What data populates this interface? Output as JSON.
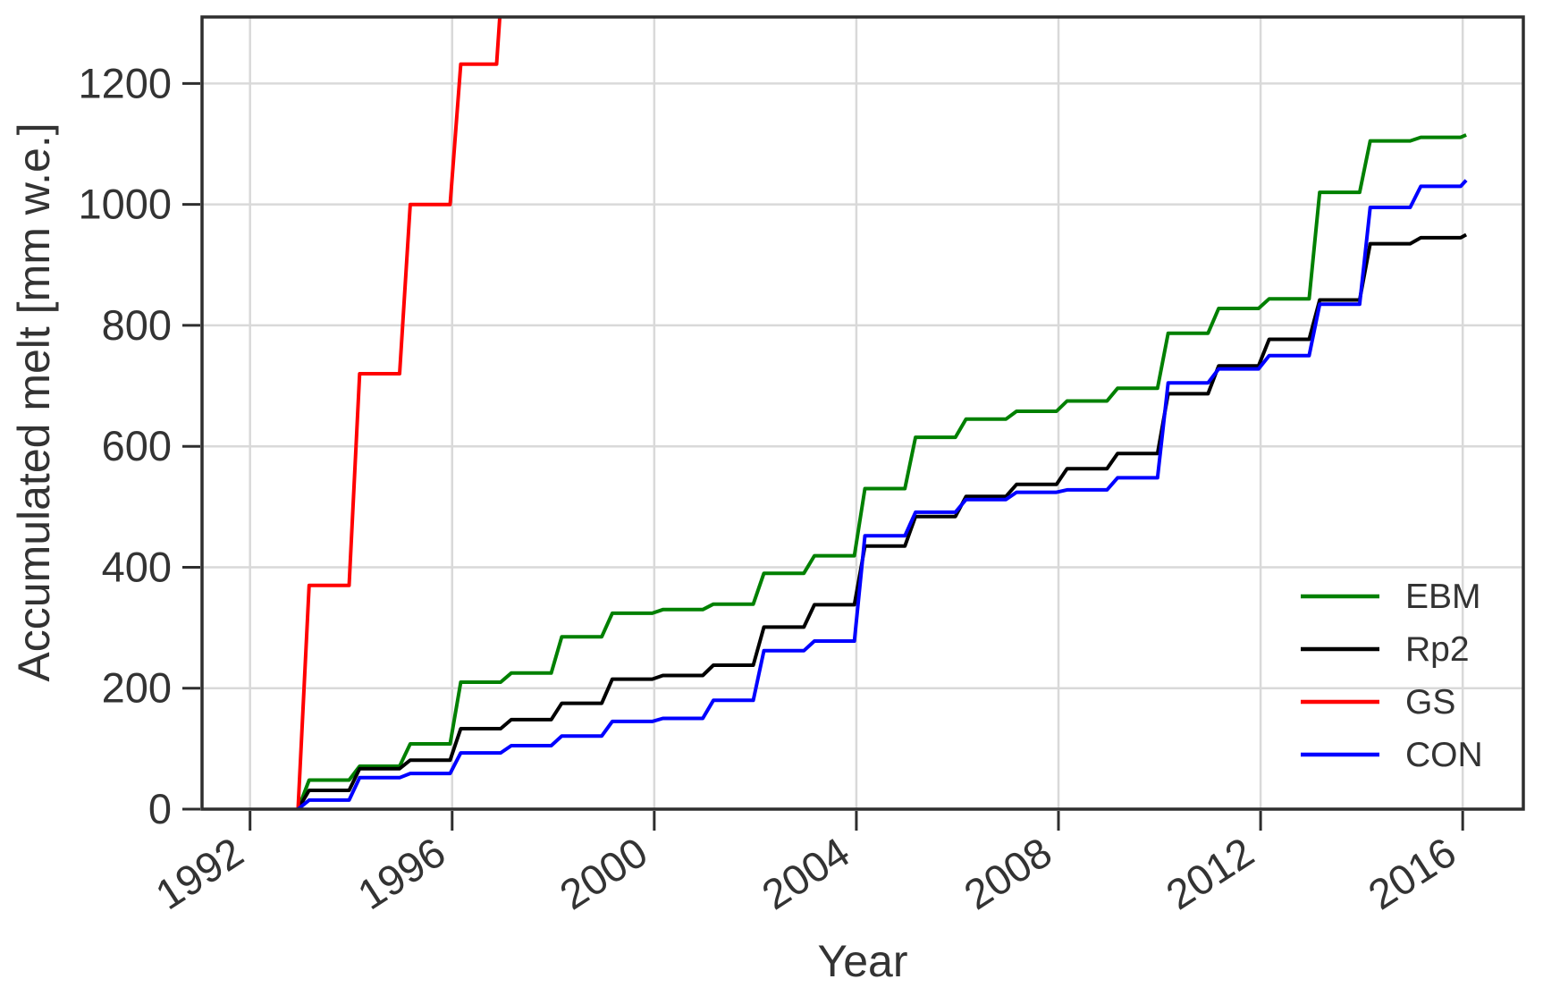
{
  "page": {
    "background": "#ffffff"
  },
  "chart_data": {
    "type": "line",
    "subtype": "cumulative-annual-step",
    "title": "",
    "xlabel": "Year",
    "ylabel": "Accumulated melt [mm w.e.]",
    "x_ticks": [
      1992,
      1996,
      2000,
      2004,
      2008,
      2012,
      2016
    ],
    "y_ticks": [
      0,
      200,
      400,
      600,
      800,
      1000,
      1200
    ],
    "xlim": [
      1991.05,
      2017.2
    ],
    "ylim": [
      0,
      1310
    ],
    "grid": true,
    "legend": {
      "location": "center-right",
      "entries": [
        "EBM",
        "Rp2",
        "GS",
        "CON"
      ]
    },
    "start_year": 1993,
    "end_year": 2016,
    "melt_onset_year": 1992.95,
    "series": [
      {
        "name": "EBM",
        "color": "#008000",
        "values": [
          48,
          71,
          108,
          210,
          225,
          285,
          324,
          330,
          339,
          390,
          419,
          530,
          615,
          645,
          658,
          675,
          696,
          787,
          828,
          844,
          1020,
          1105,
          1111,
          1115
        ]
      },
      {
        "name": "Rp2",
        "color": "#000000",
        "values": [
          31,
          67,
          81,
          133,
          148,
          175,
          215,
          221,
          238,
          301,
          338,
          435,
          484,
          517,
          537,
          563,
          588,
          687,
          733,
          777,
          842,
          935,
          945,
          950
        ]
      },
      {
        "name": "GS",
        "color": "#ff0000",
        "values": [
          370,
          720,
          1000,
          1232
        ],
        "off_scale_after_last": true,
        "note": "exits top of axes during 1997 melt season"
      },
      {
        "name": "CON",
        "color": "#0000ff",
        "values": [
          15,
          52,
          59,
          93,
          105,
          121,
          145,
          150,
          180,
          262,
          278,
          452,
          491,
          512,
          524,
          528,
          548,
          705,
          728,
          750,
          835,
          995,
          1030,
          1040
        ]
      }
    ],
    "style": {
      "grid_color": "#d9d9d9",
      "spine_color": "#2e2e2e",
      "tick_color": "#2e2e2e",
      "text_color": "#333333",
      "line_width": 4,
      "tick_label_font_px": 47,
      "axis_label_font_px": 50,
      "legend_font_px": 39,
      "x_tick_label_rotation_deg": -33
    }
  }
}
